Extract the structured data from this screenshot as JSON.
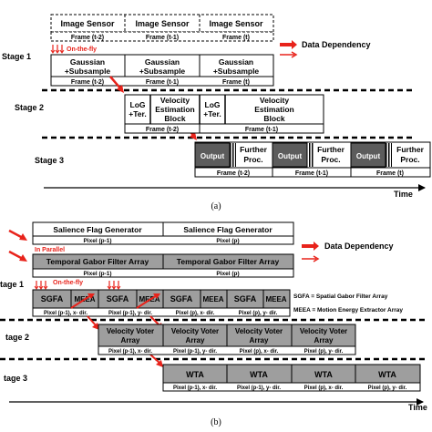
{
  "colors": {
    "arrow": "#e8231b",
    "gray_fill": "#9e9e9e",
    "dark_fill": "#5c5c5c",
    "stripe": "#000000"
  },
  "diagram_a": {
    "stages": [
      "Stage 1",
      "Stage 2",
      "Stage 3"
    ],
    "image_sensor": "Image Sensor",
    "frames": {
      "t2": "Frame (t-2)",
      "t1": "Frame (t-1)",
      "t": "Frame (t)"
    },
    "on_the_fly": "On-the-fly",
    "gaussian_line1": "Gaussian",
    "gaussian_line2": "+Subsample",
    "log_line1": "LoG",
    "log_line2": "+Ter.",
    "vel_line1": "Velocity",
    "vel_line2": "Estimation",
    "vel_line3": "Block",
    "output": "Output",
    "further_line1": "Further",
    "further_line2": "Proc.",
    "data_dependency": "Data Dependency",
    "time": "Time",
    "caption": "(a)"
  },
  "diagram_b": {
    "stages": [
      "tage 1",
      "tage 2",
      "tage 3"
    ],
    "salience": "Salience Flag Generator",
    "pixel_p1": "Pixel (p-1)",
    "pixel_p": "Pixel (p)",
    "in_parallel": "In Parallel",
    "temporal_gabor": "Temporal Gabor Filter Array",
    "on_the_fly": "On-the-fly",
    "sgfa": "SGFA",
    "meea": "MEEA",
    "px_p1_x": "Pixel (p-1), x- dir.",
    "px_p1_y": "Pixel (p-1), y- dir.",
    "px_p_x": "Pixel (p), x- dir.",
    "px_p_y": "Pixel (p), y- dir.",
    "vv_line1": "Velocity Voter",
    "vv_line2": "Array",
    "wta": "WTA",
    "data_dependency": "Data Dependency",
    "legend_sgfa": "SGFA = Spatial Gabor Filter Array",
    "legend_meea": "MEEA = Motion Energy Extractor Array",
    "time": "Time",
    "caption": "(b)"
  }
}
